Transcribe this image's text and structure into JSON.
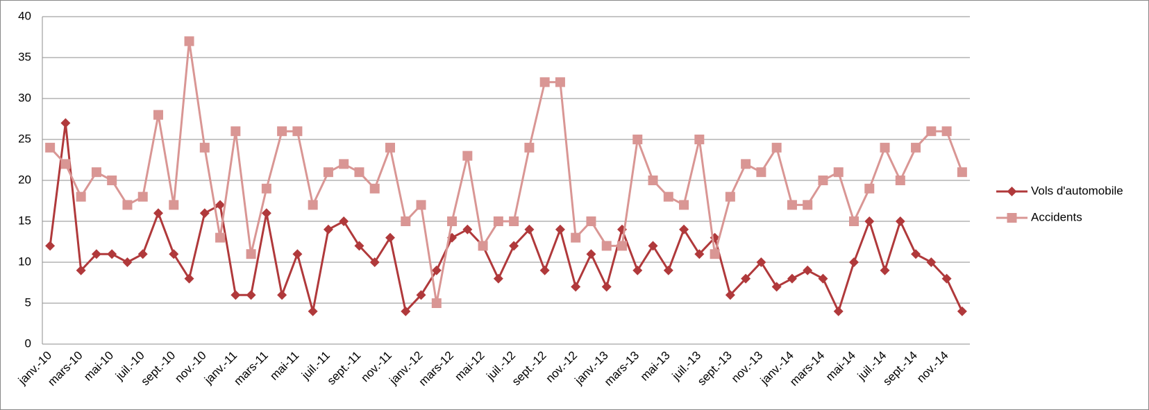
{
  "chart_data": {
    "type": "line",
    "categories": [
      "janv.-10",
      null,
      "mars-10",
      null,
      "mai-10",
      null,
      "juil.-10",
      null,
      "sept.-10",
      null,
      "nov.-10",
      null,
      "janv.-11",
      null,
      "mars-11",
      null,
      "mai-11",
      null,
      "juil.-11",
      null,
      "sept.-11",
      null,
      "nov.-11",
      null,
      "janv.-12",
      null,
      "mars-12",
      null,
      "mai-12",
      null,
      "juil.-12",
      null,
      "sept.-12",
      null,
      "nov.-12",
      null,
      "janv.-13",
      null,
      "mars-13",
      null,
      "mai-13",
      null,
      "juil.-13",
      null,
      "sept.-13",
      null,
      "nov.-13",
      null,
      "janv.-14",
      null,
      "mars-14",
      null,
      "mai-14",
      null,
      "juil.-14",
      null,
      "sept.-14",
      null,
      "nov.-14",
      null
    ],
    "series": [
      {
        "name": "Vols d'automobile",
        "color": "#b0393b",
        "marker": "diamond",
        "values": [
          12,
          27,
          9,
          11,
          11,
          10,
          11,
          16,
          11,
          8,
          16,
          17,
          6,
          6,
          16,
          6,
          11,
          4,
          14,
          15,
          12,
          10,
          13,
          4,
          6,
          9,
          13,
          14,
          12,
          8,
          12,
          14,
          9,
          14,
          7,
          11,
          7,
          14,
          9,
          12,
          9,
          14,
          11,
          13,
          6,
          8,
          10,
          7,
          8,
          9,
          8,
          4,
          10,
          15,
          9,
          15,
          11,
          10,
          8,
          4
        ]
      },
      {
        "name": "Accidents",
        "color": "#d99694",
        "marker": "square",
        "values": [
          24,
          22,
          18,
          21,
          20,
          17,
          18,
          28,
          17,
          37,
          24,
          13,
          26,
          11,
          19,
          26,
          26,
          17,
          21,
          22,
          21,
          19,
          24,
          15,
          17,
          5,
          15,
          23,
          12,
          15,
          15,
          24,
          32,
          32,
          13,
          15,
          12,
          12,
          25,
          20,
          18,
          17,
          25,
          11,
          18,
          22,
          21,
          24,
          17,
          17,
          20,
          21,
          15,
          19,
          24,
          20,
          24,
          26,
          26,
          21
        ]
      }
    ],
    "ylim": [
      0,
      40
    ],
    "yticks": [
      0,
      5,
      10,
      15,
      20,
      25,
      30,
      35,
      40
    ],
    "grid": true,
    "legend": "right"
  }
}
